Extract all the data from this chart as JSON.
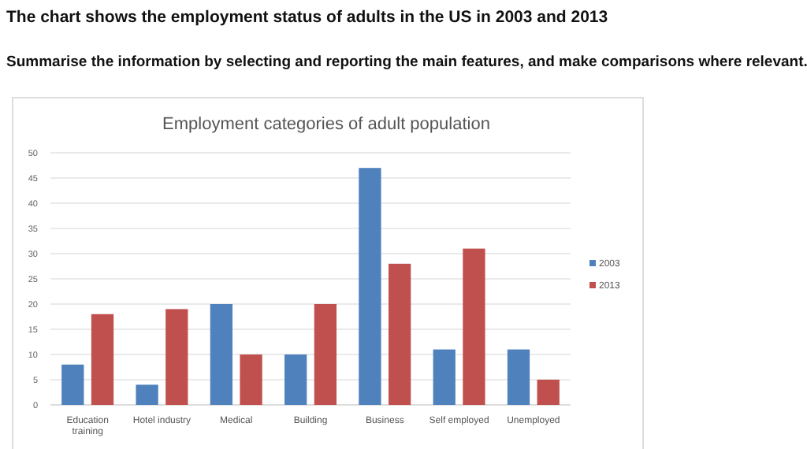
{
  "chart_data": {
    "type": "bar",
    "title": "Employment categories of adult population",
    "annotations": [
      "The chart shows the employment status of adults in the US in 2003 and 2013",
      "Summarise the information by selecting and reporting the main features, and make comparisons where relevant."
    ],
    "categories": [
      "Education training",
      "Hotel industry",
      "Medical",
      "Building",
      "Business",
      "Self employed",
      "Unemployed"
    ],
    "series": [
      {
        "name": "2003",
        "color": "#4f81bd",
        "values": [
          8,
          4,
          20,
          10,
          47,
          11,
          11
        ]
      },
      {
        "name": "2013",
        "color": "#c0504d",
        "values": [
          18,
          19,
          10,
          20,
          28,
          31,
          5
        ]
      }
    ],
    "ylim": [
      0,
      50
    ],
    "yticks": [
      0,
      5,
      10,
      15,
      20,
      25,
      30,
      35,
      40,
      45,
      50
    ],
    "grid": "y",
    "legend": "right"
  }
}
